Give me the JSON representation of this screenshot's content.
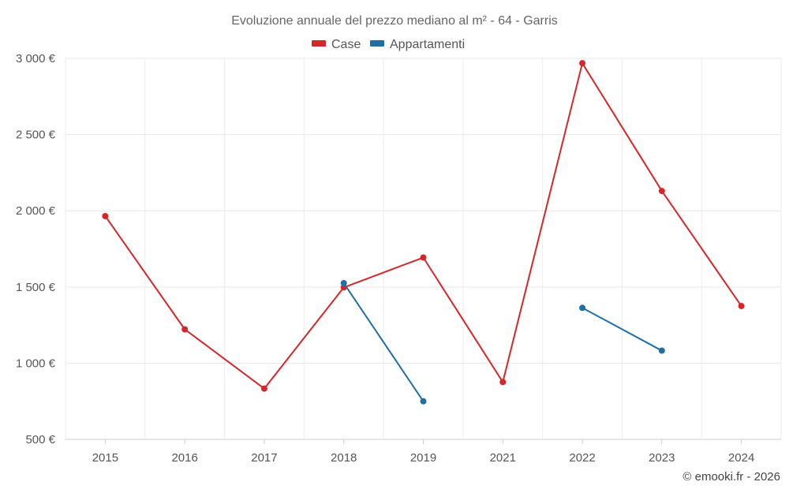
{
  "chart_data": {
    "type": "line",
    "title": "Evoluzione annuale del prezzo mediano al m² - 64 - Garris",
    "categories": [
      "2015",
      "2016",
      "2017",
      "2018",
      "2019",
      "2021",
      "2022",
      "2023",
      "2024"
    ],
    "y_ticks": [
      "500 €",
      "1 000 €",
      "1 500 €",
      "2 000 €",
      "2 500 €",
      "3 000 €"
    ],
    "ylim": [
      500,
      3000
    ],
    "grid": true,
    "legend_position": "top-center",
    "series": [
      {
        "name": "Case",
        "color": "#d62728",
        "values": [
          1965,
          1222,
          833,
          1497,
          1693,
          876,
          2968,
          2130,
          1375
        ]
      },
      {
        "name": "Appartamenti",
        "color": "#1f6fa5",
        "values": [
          null,
          null,
          null,
          1525,
          750,
          null,
          1363,
          1082,
          null
        ]
      }
    ]
  },
  "credit": "© emooki.fr - 2026"
}
